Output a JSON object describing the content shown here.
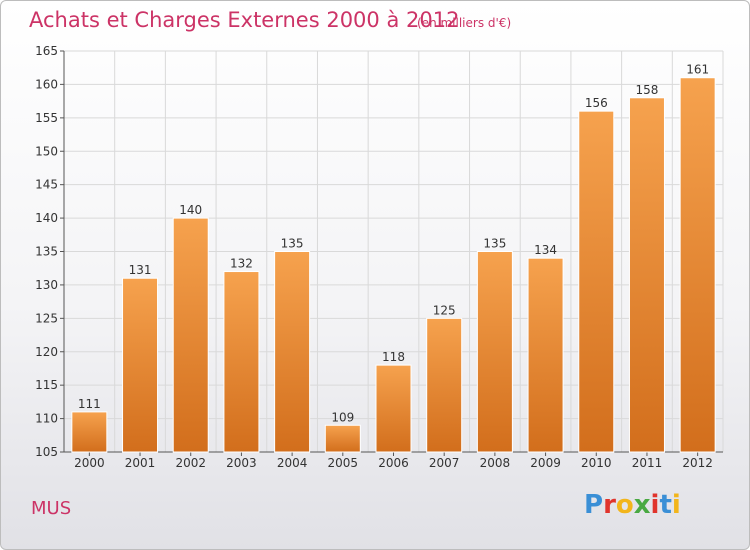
{
  "title": "Achats et Charges Externes 2000 à 2012",
  "subtitle": "(en milliers d'€)",
  "commune": "MUS",
  "logo": {
    "text": "Proxiti",
    "letters": [
      {
        "char": "P",
        "color": "#3a8fd6"
      },
      {
        "char": "r",
        "color": "#e0342c"
      },
      {
        "char": "o",
        "color": "#f2b51b"
      },
      {
        "char": "x",
        "color": "#49a942"
      },
      {
        "char": "i",
        "color": "#e0342c"
      },
      {
        "char": "t",
        "color": "#3a8fd6"
      },
      {
        "char": "i",
        "color": "#f2b51b"
      }
    ]
  },
  "colors": {
    "bar_light": "#f6a24e",
    "bar_dark": "#d26e1c",
    "title": "#cc3366",
    "grid": "#d9d9d9"
  },
  "chart_data": {
    "type": "bar",
    "categories": [
      "2000",
      "2001",
      "2002",
      "2003",
      "2004",
      "2005",
      "2006",
      "2007",
      "2008",
      "2009",
      "2010",
      "2011",
      "2012"
    ],
    "values": [
      111,
      131,
      140,
      132,
      135,
      109,
      118,
      125,
      135,
      134,
      156,
      158,
      161
    ],
    "ylim": [
      105,
      165
    ],
    "yticks": [
      105,
      110,
      115,
      120,
      125,
      130,
      135,
      140,
      145,
      150,
      155,
      160,
      165
    ],
    "grid": true,
    "data_labels": true
  }
}
